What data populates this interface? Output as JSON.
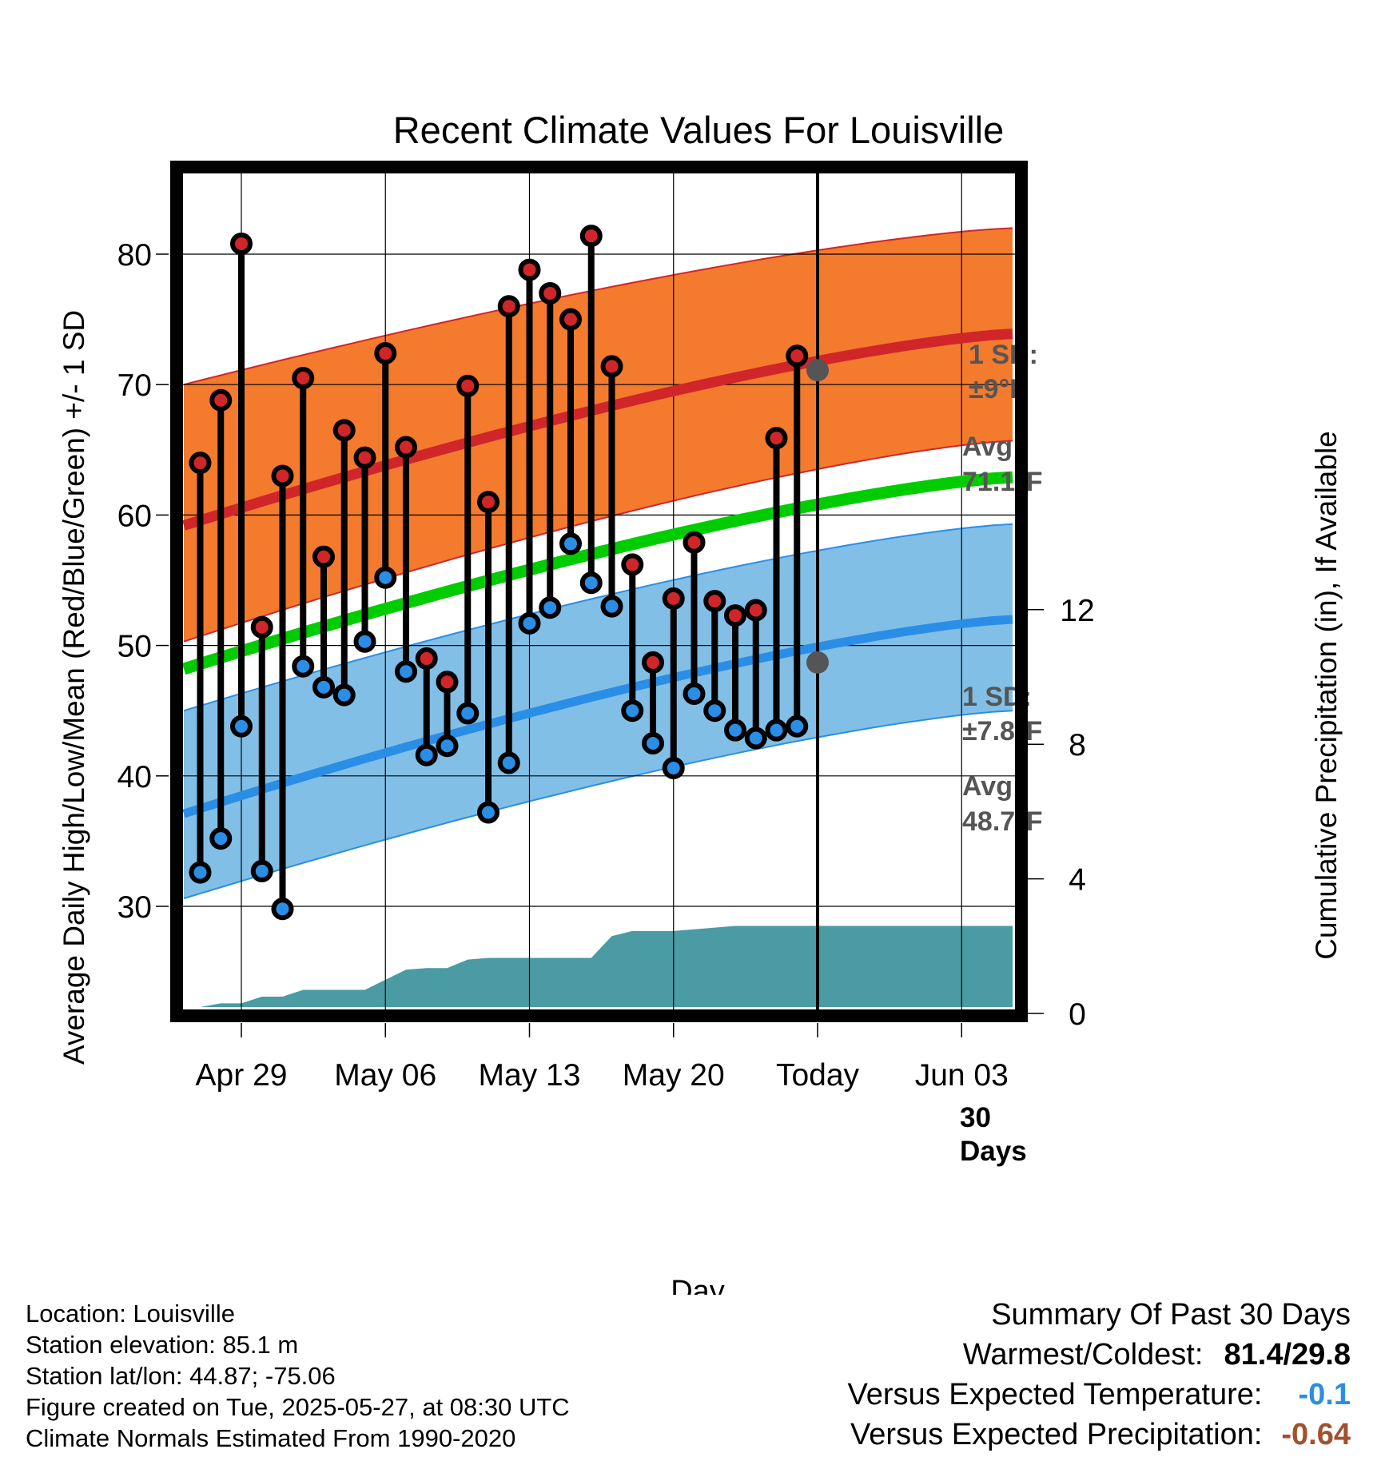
{
  "chart_data": {
    "type": "line",
    "title": "Recent Climate Values For Louisville",
    "xlabel": "Day",
    "ylabel": "Average Daily High/Low/Mean (Red/Blue/Green) +/- 1 SD",
    "y2label": "Cumulative Precipitation (in), If Available",
    "x_ticks": [
      "Apr 29",
      "May 06",
      "May 13",
      "May 20",
      "Today",
      "Jun 03"
    ],
    "x_range": [
      "Apr 27",
      "Jun 05"
    ],
    "ylim": [
      22,
      87
    ],
    "y_ticks": [
      30,
      40,
      50,
      60,
      70,
      80
    ],
    "y2lim": [
      0,
      24.5
    ],
    "y2_ticks": [
      0,
      4,
      8,
      12
    ],
    "grid": true,
    "normals": {
      "high_avg": {
        "day_start": 59.2,
        "day_end": 73.9
      },
      "high_upper": {
        "day_start": 70.0,
        "day_end": 82.0
      },
      "high_lower": {
        "day_start": 50.3,
        "day_end": 65.7
      },
      "mean_avg": {
        "day_start": 48.2,
        "day_end": 62.9
      },
      "low_avg": {
        "day_start": 37.1,
        "day_end": 52.0
      },
      "low_upper": {
        "day_start": 45.0,
        "day_end": 59.3
      },
      "low_lower": {
        "day_start": 30.6,
        "day_end": 45.0
      }
    },
    "series": [
      {
        "name": "High",
        "color": "#d0262a",
        "values": [
          64.0,
          68.8,
          80.8,
          51.4,
          63.0,
          70.5,
          56.8,
          66.5,
          64.4,
          72.4,
          65.2,
          49.0,
          47.2,
          69.9,
          61.0,
          76.0,
          78.8,
          77.0,
          75.0,
          81.4,
          71.4,
          56.2,
          48.7,
          53.6,
          57.9,
          53.4,
          52.3,
          52.7,
          65.9,
          72.2
        ]
      },
      {
        "name": "Low",
        "color": "#2a8ee6",
        "values": [
          32.6,
          35.2,
          43.8,
          32.7,
          29.8,
          48.4,
          46.8,
          46.2,
          50.3,
          55.2,
          48.0,
          41.6,
          42.3,
          44.8,
          37.2,
          41.0,
          51.7,
          52.9,
          57.8,
          54.8,
          53.0,
          45.0,
          42.5,
          40.6,
          46.3,
          45.0,
          43.5,
          42.9,
          43.5,
          43.8
        ]
      }
    ],
    "precip_cumulative": [
      0.0,
      0.3,
      0.3,
      0.5,
      0.5,
      0.7,
      0.7,
      0.7,
      0.7,
      1.0,
      1.3,
      1.35,
      1.35,
      1.6,
      1.65,
      1.65,
      1.65,
      1.65,
      1.65,
      1.65,
      2.3,
      2.45,
      2.45,
      2.45,
      2.5,
      2.55,
      2.6,
      2.6,
      2.6,
      2.6,
      2.6,
      2.6,
      2.6,
      2.6,
      2.6,
      2.6,
      2.6,
      2.6,
      2.6,
      2.6,
      2.6
    ],
    "annotations": {
      "high_sd_label": "1 SD:",
      "high_sd_value": "±9°F",
      "high_avg_label": "Avg:",
      "high_avg_value": "71.1°F",
      "high_today_avg": 71.1,
      "low_sd_label": "1 SD:",
      "low_sd_value": "±7.8°F",
      "low_avg_label": "Avg:",
      "low_avg_value": "48.7°F",
      "low_today_avg": 48.7,
      "days_label_1": "30",
      "days_label_2": "Days"
    },
    "colors": {
      "high_band": "#f47a2e",
      "high_line": "#d0262a",
      "low_band": "#82bfe6",
      "low_line": "#2a8ee6",
      "mean_line": "#00cc00",
      "precip": "#4a9ba3",
      "annotation": "#555555"
    }
  },
  "footer": {
    "location": "Location: Louisville",
    "elevation": "Station elevation: 85.1 m",
    "latlon": "Station lat/lon: 44.87; -75.06",
    "created": "Figure created on Tue, 2025-05-27, at 08:30 UTC",
    "normals": "Climate Normals Estimated From 1990-2020"
  },
  "summary": {
    "title": "Summary Of Past 30 Days",
    "warm_cold_label": "Warmest/Coldest:",
    "warm_cold_value": "81.4/29.8",
    "temp_label": "Versus Expected Temperature:",
    "temp_value": "-0.1",
    "temp_color": "#2a8ee6",
    "precip_label": "Versus Expected Precipitation:",
    "precip_value": "-0.64",
    "precip_color": "#a0522d"
  }
}
